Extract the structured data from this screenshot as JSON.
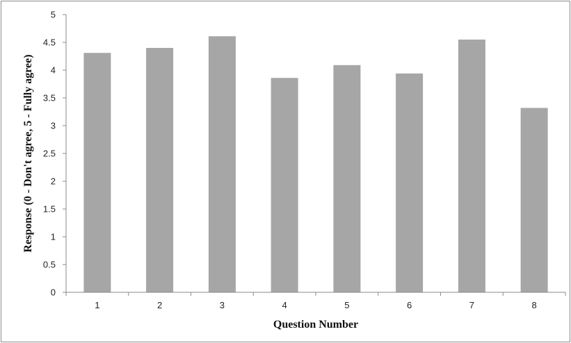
{
  "chart_data": {
    "type": "bar",
    "title": "",
    "xlabel": "Question Number",
    "ylabel": "Response (0 - Don't agree, 5 - Fully agree)",
    "categories": [
      "1",
      "2",
      "3",
      "4",
      "5",
      "6",
      "7",
      "8"
    ],
    "values": [
      4.31,
      4.4,
      4.61,
      3.86,
      4.09,
      3.94,
      4.55,
      3.32
    ],
    "ylim": [
      0,
      5
    ],
    "yticks": [
      "0",
      "0.5",
      "1",
      "1.5",
      "2",
      "2.5",
      "3",
      "3.5",
      "4",
      "4.5",
      "5"
    ],
    "grid": false,
    "legend": "none",
    "colors": {
      "bar": "#a6a6a6",
      "axis": "#888888",
      "frame": "#8c8c8c"
    }
  }
}
